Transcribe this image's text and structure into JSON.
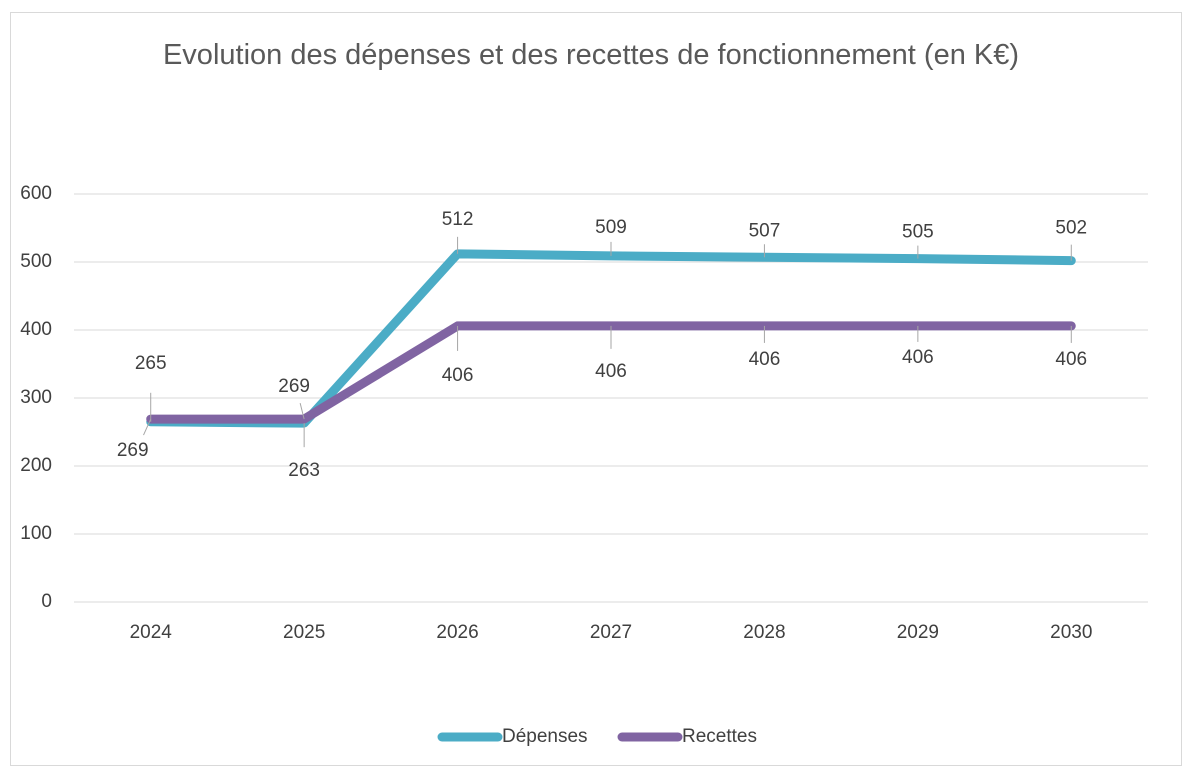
{
  "chart_data": {
    "type": "line",
    "title": "Evolution des dépenses et des recettes de fonctionnement (en K€)",
    "categories": [
      "2024",
      "2025",
      "2026",
      "2027",
      "2028",
      "2029",
      "2030"
    ],
    "series": [
      {
        "name": "Dépenses",
        "color": "#4bacc6",
        "values": [
          265,
          263,
          512,
          509,
          507,
          505,
          502
        ]
      },
      {
        "name": "Recettes",
        "color": "#8064a2",
        "values": [
          269,
          269,
          406,
          406,
          406,
          406,
          406
        ]
      }
    ],
    "ylim": [
      0,
      600
    ],
    "yticks": [
      0,
      100,
      200,
      300,
      400,
      500,
      600
    ],
    "grid": true,
    "legend": "bottom"
  }
}
